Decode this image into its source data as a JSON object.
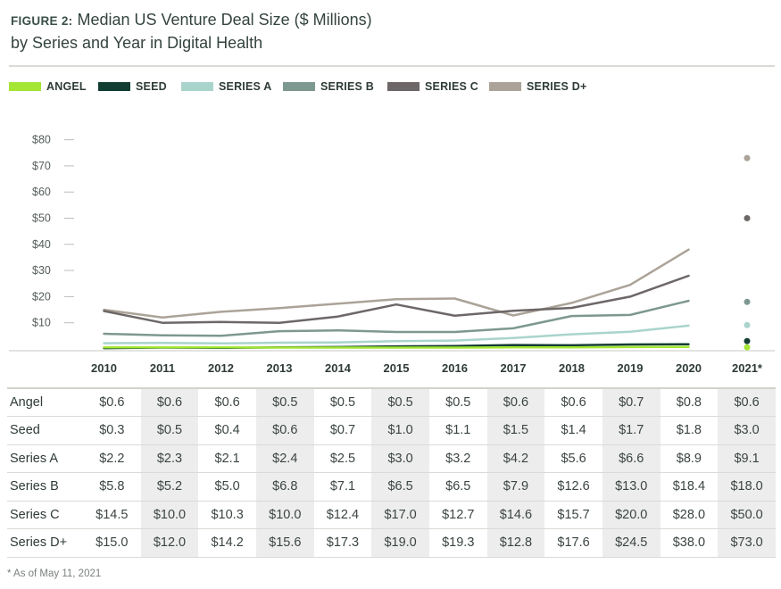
{
  "header": {
    "figure_label": "FIGURE 2:",
    "title_line1": "Median US Venture Deal Size ($ Millions)",
    "title_line2": "by Series and Year in Digital Health"
  },
  "footnote": "* As of May 11, 2021",
  "chart_data": {
    "type": "line",
    "title": "Median US Venture Deal Size ($ Millions) by Series and Year in Digital Health",
    "x": [
      "2010",
      "2011",
      "2012",
      "2013",
      "2014",
      "2015",
      "2016",
      "2017",
      "2018",
      "2019",
      "2020",
      "2021*"
    ],
    "y_ticks": [
      "$80",
      "$70",
      "$60",
      "$50",
      "$40",
      "$30",
      "$20",
      "$10"
    ],
    "ylim": [
      0,
      80
    ],
    "grid": false,
    "legend_position": "top-left",
    "last_point_style": "dot",
    "series": [
      {
        "name": "ANGEL",
        "row_label": "Angel",
        "color": "#a3e635",
        "values": [
          0.6,
          0.6,
          0.6,
          0.5,
          0.5,
          0.5,
          0.5,
          0.6,
          0.6,
          0.7,
          0.8,
          0.6
        ],
        "labels": [
          "$0.6",
          "$0.6",
          "$0.6",
          "$0.5",
          "$0.5",
          "$0.5",
          "$0.5",
          "$0.6",
          "$0.6",
          "$0.7",
          "$0.8",
          "$0.6"
        ]
      },
      {
        "name": "SEED",
        "row_label": "Seed",
        "color": "#123d33",
        "values": [
          0.3,
          0.5,
          0.4,
          0.6,
          0.7,
          1.0,
          1.1,
          1.5,
          1.4,
          1.7,
          1.8,
          3.0
        ],
        "labels": [
          "$0.3",
          "$0.5",
          "$0.4",
          "$0.6",
          "$0.7",
          "$1.0",
          "$1.1",
          "$1.5",
          "$1.4",
          "$1.7",
          "$1.8",
          "$3.0"
        ]
      },
      {
        "name": "SERIES A",
        "row_label": "Series A",
        "color": "#a9d4cc",
        "values": [
          2.2,
          2.3,
          2.1,
          2.4,
          2.5,
          3.0,
          3.2,
          4.2,
          5.6,
          6.6,
          8.9,
          9.1
        ],
        "labels": [
          "$2.2",
          "$2.3",
          "$2.1",
          "$2.4",
          "$2.5",
          "$3.0",
          "$3.2",
          "$4.2",
          "$5.6",
          "$6.6",
          "$8.9",
          "$9.1"
        ]
      },
      {
        "name": "SERIES B",
        "row_label": "Series B",
        "color": "#7d9891",
        "values": [
          5.8,
          5.2,
          5.0,
          6.8,
          7.1,
          6.5,
          6.5,
          7.9,
          12.6,
          13.0,
          18.4,
          18.0
        ],
        "labels": [
          "$5.8",
          "$5.2",
          "$5.0",
          "$6.8",
          "$7.1",
          "$6.5",
          "$6.5",
          "$7.9",
          "$12.6",
          "$13.0",
          "$18.4",
          "$18.0"
        ]
      },
      {
        "name": "SERIES C",
        "row_label": "Series C",
        "color": "#6d6767",
        "values": [
          14.5,
          10.0,
          10.3,
          10.0,
          12.4,
          17.0,
          12.7,
          14.6,
          15.7,
          20.0,
          28.0,
          50.0
        ],
        "labels": [
          "$14.5",
          "$10.0",
          "$10.3",
          "$10.0",
          "$12.4",
          "$17.0",
          "$12.7",
          "$14.6",
          "$15.7",
          "$20.0",
          "$28.0",
          "$50.0"
        ]
      },
      {
        "name": "SERIES D+",
        "row_label": "Series D+",
        "color": "#aba398",
        "values": [
          15.0,
          12.0,
          14.2,
          15.6,
          17.3,
          19.0,
          19.3,
          12.8,
          17.6,
          24.5,
          38.0,
          73.0
        ],
        "labels": [
          "$15.0",
          "$12.0",
          "$14.2",
          "$15.6",
          "$17.3",
          "$19.0",
          "$19.3",
          "$12.8",
          "$17.6",
          "$24.5",
          "$38.0",
          "$73.0"
        ]
      }
    ]
  }
}
